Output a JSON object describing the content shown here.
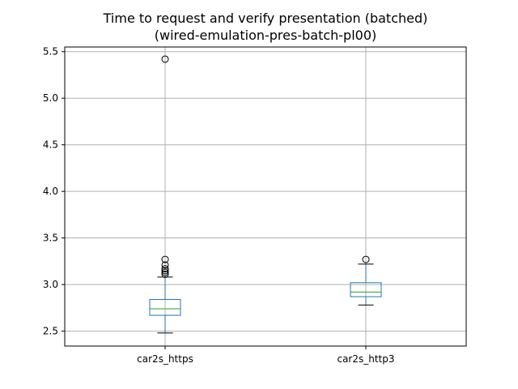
{
  "chart_data": {
    "type": "box",
    "title": "Time to request and verify presentation (batched)",
    "subtitle": "(wired-emulation-pres-batch-pl00)",
    "xlabel": "",
    "ylabel": "",
    "ylim": [
      2.34,
      5.55
    ],
    "yticks": [
      2.5,
      3.0,
      3.5,
      4.0,
      4.5,
      5.0,
      5.5
    ],
    "ytick_labels": [
      "2.5",
      "3.0",
      "3.5",
      "4.0",
      "4.5",
      "5.0",
      "5.5"
    ],
    "grid": true,
    "categories": [
      "car2s_https",
      "car2s_http3"
    ],
    "boxes": [
      {
        "name": "car2s_https",
        "whisker_low": 2.48,
        "q1": 2.67,
        "median": 2.74,
        "q3": 2.84,
        "whisker_high": 3.08,
        "outliers": [
          3.11,
          3.13,
          3.15,
          3.17,
          3.21,
          3.27,
          5.42
        ]
      },
      {
        "name": "car2s_http3",
        "whisker_low": 2.78,
        "q1": 2.87,
        "median": 2.92,
        "q3": 3.02,
        "whisker_high": 3.22,
        "outliers": [
          3.27
        ]
      }
    ],
    "colors": {
      "box": "#1f77b4",
      "median": "#2ca02c",
      "whisker": "#1f77b4",
      "cap": "#000000",
      "outlier": "#000000",
      "grid": "#b0b0b0"
    }
  }
}
